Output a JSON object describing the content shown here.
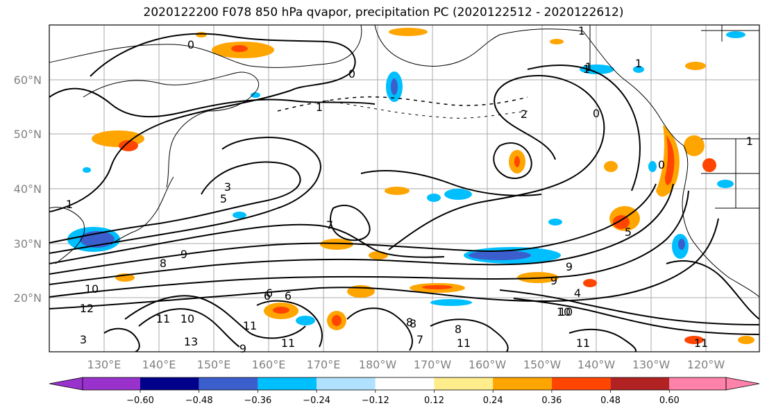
{
  "title": "2020122200 F078 850 hPa qvapor, precipitation PC (2020122512 - 2020122612)",
  "lat_labels": [
    "60°N",
    "50°N",
    "40°N",
    "30°N",
    "20°N"
  ],
  "lon_labels": [
    "130°E",
    "140°E",
    "150°E",
    "160°E",
    "170°E",
    "180°W",
    "170°W",
    "160°W",
    "150°W",
    "140°W",
    "130°W",
    "120°W"
  ],
  "contour_labels": [
    "0",
    "1",
    "0",
    "1",
    "1",
    "2",
    "3",
    "5",
    "8",
    "9",
    "10",
    "12",
    "13",
    "11",
    "10",
    "11",
    "9",
    "10",
    "11",
    "8",
    "7",
    "6",
    "3",
    "8",
    "9",
    "7",
    "6",
    "5",
    "4",
    "8",
    "9",
    "10",
    "11",
    "11",
    "11",
    "6",
    "1",
    "0",
    "1",
    "0",
    "1",
    "1"
  ],
  "colorbar": {
    "ticks": [
      "−0.60",
      "−0.48",
      "−0.36",
      "−0.24",
      "−0.12",
      "0.12",
      "0.24",
      "0.36",
      "0.48",
      "0.60"
    ],
    "colors": [
      "#9932cc",
      "#00008b",
      "#3a5fcd",
      "#00bfff",
      "#b0e2ff",
      "#ffffff",
      "#ffec8b",
      "#ffa500",
      "#ff4500",
      "#b22222",
      "#ff82ab"
    ]
  }
}
